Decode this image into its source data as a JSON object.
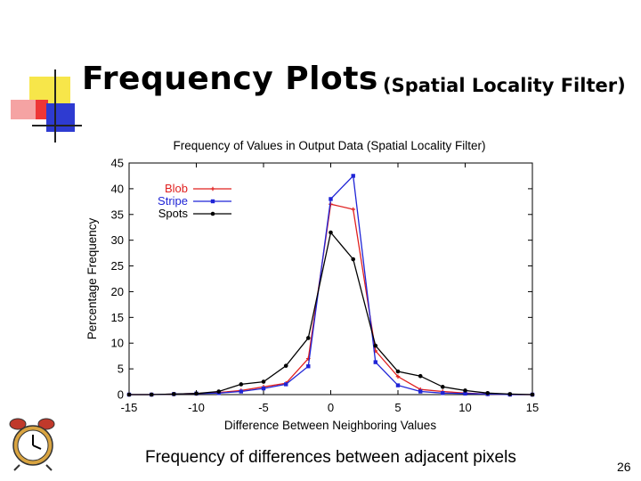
{
  "slide": {
    "title": "Frequency Plots",
    "subtitle": "(Spatial Locality Filter)",
    "caption": "Frequency of differences between adjacent pixels",
    "page_number": "26"
  },
  "colors": {
    "deco_yellow": "#f7e64a",
    "deco_red": "#ee3636",
    "deco_pink": "#f5a3a3",
    "deco_blue": "#2e3bd1",
    "blob": "#e0201f",
    "stripe": "#1f24d6",
    "spots": "#000000"
  },
  "chart_data": {
    "type": "line",
    "title": "Frequency of Values in Output Data (Spatial Locality Filter)",
    "xlabel": "Difference Between Neighboring Values",
    "ylabel": "Percentage Frequency",
    "xlim": [
      -15,
      15
    ],
    "ylim": [
      0,
      45
    ],
    "xticks": [
      -15,
      -10,
      -5,
      0,
      5,
      10,
      15
    ],
    "yticks": [
      0,
      5,
      10,
      15,
      20,
      25,
      30,
      35,
      40,
      45
    ],
    "legend_position": "top-left",
    "grid": false,
    "series": [
      {
        "name": "Blob",
        "color": "#e0201f",
        "x": [
          -15,
          -13.33,
          -11.67,
          -10,
          -8.33,
          -6.67,
          -5,
          -3.33,
          -1.67,
          0,
          1.67,
          3.33,
          5,
          6.67,
          8.33,
          10,
          11.67,
          13.33,
          15
        ],
        "y": [
          0,
          0,
          0.1,
          0.2,
          0.4,
          0.8,
          1.5,
          2.2,
          7.0,
          37.0,
          36.0,
          8.5,
          3.5,
          1.0,
          0.6,
          0.3,
          0.1,
          0,
          0
        ]
      },
      {
        "name": "Stripe",
        "color": "#1f24d6",
        "x": [
          -15,
          -13.33,
          -11.67,
          -10,
          -8.33,
          -6.67,
          -5,
          -3.33,
          -1.67,
          0,
          1.67,
          3.33,
          5,
          6.67,
          8.33,
          10,
          11.67,
          13.33,
          15
        ],
        "y": [
          0,
          0,
          0.1,
          0.2,
          0.3,
          0.6,
          1.2,
          2.0,
          5.5,
          38.0,
          42.5,
          6.3,
          1.8,
          0.6,
          0.3,
          0.2,
          0.1,
          0,
          0
        ]
      },
      {
        "name": "Spots",
        "color": "#000000",
        "x": [
          -15,
          -13.33,
          -11.67,
          -10,
          -8.33,
          -6.67,
          -5,
          -3.33,
          -1.67,
          0,
          1.67,
          3.33,
          5,
          6.67,
          8.33,
          10,
          11.67,
          13.33,
          15
        ],
        "y": [
          0,
          0,
          0.1,
          0.2,
          0.6,
          2.0,
          2.5,
          5.6,
          11.0,
          31.5,
          26.3,
          9.5,
          4.5,
          3.6,
          1.5,
          0.8,
          0.3,
          0.1,
          0
        ]
      }
    ]
  }
}
